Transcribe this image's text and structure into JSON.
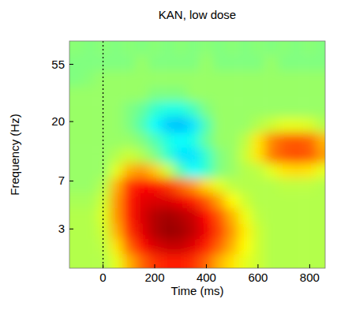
{
  "chart_data": {
    "type": "heatmap",
    "title": "KAN, low dose",
    "x_label": "Time (ms)",
    "y_label": "Frequency (Hz)",
    "log": "y",
    "xlim": [
      -130,
      860
    ],
    "ylim": [
      1.5,
      83
    ],
    "xticks": [
      0,
      200,
      400,
      600,
      800
    ],
    "yticks": [
      3,
      7,
      20,
      55
    ],
    "zlim": [
      -1,
      1
    ],
    "vlines": [
      0
    ],
    "x": [
      -100,
      -50,
      0,
      50,
      100,
      150,
      200,
      250,
      300,
      350,
      400,
      450,
      500,
      550,
      600,
      650,
      700,
      750,
      800,
      850
    ],
    "y": [
      1.7,
      2.2,
      2.9,
      3.8,
      5,
      6.5,
      8.5,
      11,
      14.5,
      19,
      25,
      33,
      43,
      57,
      75
    ],
    "values": [
      [
        0.1,
        0.1,
        0.1,
        0.2,
        0.4,
        0.55,
        0.65,
        0.7,
        0.7,
        0.65,
        0.55,
        0.4,
        0.3,
        0.2,
        0.15,
        0.1,
        0.1,
        0.1,
        0.1,
        0.1
      ],
      [
        0.1,
        0.1,
        0.12,
        0.3,
        0.55,
        0.72,
        0.82,
        0.86,
        0.86,
        0.8,
        0.7,
        0.55,
        0.4,
        0.25,
        0.15,
        0.1,
        0.1,
        0.1,
        0.1,
        0.1
      ],
      [
        0.1,
        0.1,
        0.15,
        0.4,
        0.65,
        0.8,
        0.9,
        0.95,
        0.93,
        0.87,
        0.78,
        0.62,
        0.45,
        0.28,
        0.15,
        0.1,
        0.1,
        0.1,
        0.1,
        0.1
      ],
      [
        0.1,
        0.1,
        0.18,
        0.45,
        0.7,
        0.82,
        0.9,
        0.93,
        0.9,
        0.85,
        0.75,
        0.58,
        0.4,
        0.22,
        0.12,
        0.1,
        0.1,
        0.1,
        0.1,
        0.1
      ],
      [
        0.08,
        0.08,
        0.15,
        0.45,
        0.7,
        0.8,
        0.82,
        0.82,
        0.78,
        0.7,
        0.58,
        0.42,
        0.25,
        0.15,
        0.1,
        0.1,
        0.1,
        0.1,
        0.1,
        0.1
      ],
      [
        0.05,
        0.05,
        0.1,
        0.4,
        0.65,
        0.75,
        0.72,
        0.65,
        0.55,
        0.45,
        0.32,
        0.2,
        0.12,
        0.1,
        0.1,
        0.1,
        0.12,
        0.12,
        0.12,
        0.1
      ],
      [
        0.05,
        0.05,
        0.05,
        0.2,
        0.4,
        0.45,
        0.35,
        0.15,
        -0.1,
        -0.25,
        -0.15,
        0.0,
        0.05,
        0.1,
        0.12,
        0.2,
        0.3,
        0.32,
        0.3,
        0.2
      ],
      [
        0.05,
        0.05,
        0.05,
        0.1,
        0.15,
        0.1,
        0.0,
        -0.15,
        -0.3,
        -0.3,
        -0.15,
        0.0,
        0.05,
        0.15,
        0.3,
        0.5,
        0.58,
        0.6,
        0.58,
        0.45
      ],
      [
        0.05,
        0.05,
        0.05,
        0.05,
        0.05,
        0.0,
        -0.1,
        -0.2,
        -0.25,
        -0.2,
        -0.05,
        0.05,
        0.05,
        0.12,
        0.3,
        0.48,
        0.56,
        0.58,
        0.55,
        0.4
      ],
      [
        0.05,
        0.05,
        0.05,
        0.05,
        0.0,
        -0.1,
        -0.25,
        -0.35,
        -0.38,
        -0.3,
        -0.1,
        0.05,
        0.05,
        0.05,
        0.1,
        0.15,
        0.2,
        0.2,
        0.18,
        0.1
      ],
      [
        0.05,
        0.05,
        0.05,
        0.05,
        0.0,
        -0.05,
        -0.15,
        -0.2,
        -0.2,
        -0.12,
        0.0,
        0.05,
        0.05,
        0.05,
        0.05,
        0.05,
        0.05,
        0.05,
        0.05,
        0.05
      ],
      [
        0.05,
        0.05,
        0.05,
        0.05,
        0.05,
        0.05,
        0.0,
        0.0,
        0.0,
        0.05,
        0.05,
        0.05,
        0.05,
        0.05,
        0.05,
        0.05,
        0.05,
        0.05,
        0.05,
        0.05
      ],
      [
        0.0,
        0.02,
        0.05,
        0.05,
        0.05,
        0.05,
        0.05,
        0.05,
        0.05,
        0.05,
        0.05,
        0.05,
        0.05,
        0.05,
        0.05,
        0.05,
        0.05,
        0.05,
        0.05,
        0.05
      ],
      [
        0.0,
        0.0,
        0.0,
        0.0,
        0.0,
        0.05,
        0.0,
        0.0,
        0.0,
        0.0,
        0.05,
        0.0,
        0.0,
        0.0,
        0.0,
        0.05,
        0.0,
        0.0,
        0.0,
        0.0
      ],
      [
        0.02,
        0.0,
        0.02,
        0.0,
        0.02,
        0.0,
        0.02,
        0.0,
        0.02,
        0.0,
        0.02,
        0.0,
        0.02,
        0.0,
        0.02,
        0.0,
        0.02,
        0.0,
        0.02,
        0.0
      ]
    ]
  }
}
